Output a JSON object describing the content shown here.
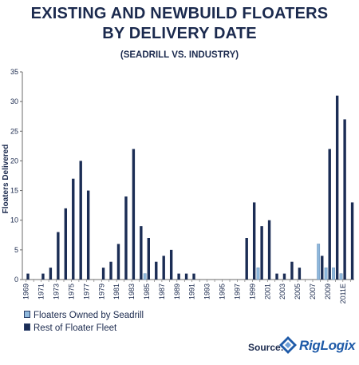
{
  "title_line1": "EXISTING AND NEWBUILD FLOATERS",
  "title_line2": "BY DELIVERY DATE",
  "subtitle": "(SEADRILL VS. INDUSTRY)",
  "legend": {
    "seadrill": "Floaters Owned by Seadrill",
    "rest": "Rest of Floater Fleet"
  },
  "source_label": "Source:",
  "logo_text": "RigLogix",
  "colors": {
    "rest": "#1b2d55",
    "seadrill": "#8fb8dc",
    "axis": "#6b6b6b",
    "text": "#1b2a4e"
  },
  "chart_data": {
    "type": "bar",
    "categories": [
      "1969",
      "1970",
      "1971",
      "1972",
      "1973",
      "1974",
      "1975",
      "1976",
      "1977",
      "1978",
      "1979",
      "1980",
      "1981",
      "1982",
      "1983",
      "1984",
      "1985",
      "1986",
      "1987",
      "1988",
      "1989",
      "1990",
      "1991",
      "1992",
      "1993",
      "1994",
      "1995",
      "1996",
      "1997",
      "1998",
      "1999",
      "2000",
      "2001",
      "2002",
      "2003",
      "2004",
      "2005",
      "2006",
      "2007",
      "2008",
      "2009",
      "2010",
      "2011E",
      "2012"
    ],
    "tick_labels": [
      "1969",
      "1971",
      "1973",
      "1975",
      "1977",
      "1979",
      "1981",
      "1983",
      "1985",
      "1987",
      "1989",
      "1991",
      "1993",
      "1995",
      "1997",
      "1999",
      "2001",
      "2003",
      "2005",
      "2007",
      "2009",
      "2011E"
    ],
    "series": [
      {
        "name": "Floaters Owned by Seadrill",
        "values": [
          0,
          0,
          0,
          0,
          0,
          0,
          0,
          0,
          0,
          0,
          0,
          0,
          0,
          0,
          0,
          0,
          1,
          0,
          0,
          0,
          0,
          0,
          0,
          0,
          0,
          0,
          0,
          0,
          0,
          0,
          0,
          2,
          0,
          0,
          0,
          0,
          0,
          0,
          0,
          6,
          2,
          2,
          1,
          0
        ]
      },
      {
        "name": "Rest of Floater Fleet",
        "values": [
          1,
          0,
          1,
          2,
          8,
          12,
          17,
          20,
          15,
          0,
          2,
          3,
          6,
          14,
          22,
          9,
          7,
          3,
          4,
          5,
          1,
          1,
          1,
          0,
          0,
          0,
          0,
          0,
          0,
          7,
          13,
          9,
          10,
          1,
          1,
          3,
          2,
          0,
          0,
          4,
          22,
          31,
          27,
          13
        ]
      }
    ],
    "xlabel": "",
    "ylabel": "Floaters Delivered",
    "ylim": [
      0,
      35
    ],
    "yticks": [
      0,
      5,
      10,
      15,
      20,
      25,
      30,
      35
    ],
    "grid": false
  }
}
